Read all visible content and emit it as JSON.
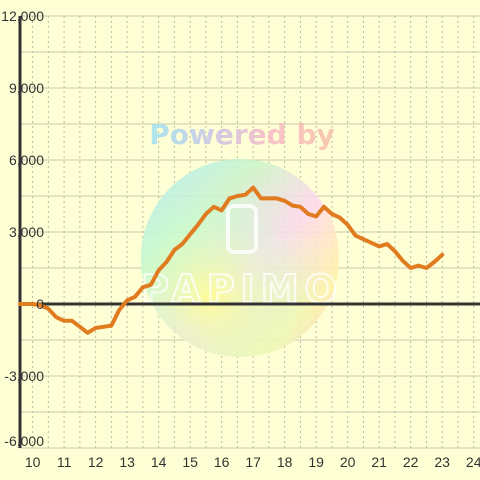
{
  "chart_data": {
    "type": "line",
    "title": "",
    "xlabel": "",
    "ylabel": "",
    "xlim": [
      9.6,
      24.2
    ],
    "ylim": [
      -6000,
      12000
    ],
    "x_ticks": [
      10,
      11,
      12,
      13,
      14,
      15,
      16,
      17,
      18,
      19,
      20,
      21,
      22,
      23,
      24
    ],
    "x_tick_labels": [
      "10",
      "11",
      "12",
      "13",
      "14",
      "15",
      "16",
      "17",
      "18",
      "19",
      "20",
      "21",
      "22",
      "23",
      "24"
    ],
    "y_ticks": [
      -6000,
      -3000,
      0,
      3000,
      6000,
      9000,
      12000
    ],
    "y_tick_labels": [
      "-6,000",
      "-3,000",
      "0",
      "3,000",
      "6,000",
      "9,000",
      "12,000"
    ],
    "grid": true,
    "legend": "none",
    "series": [
      {
        "color": "#e07b20",
        "x": [
          9.6,
          10.0,
          10.25,
          10.5,
          10.75,
          11.0,
          11.25,
          11.5,
          11.75,
          12.0,
          12.25,
          12.5,
          12.75,
          13.0,
          13.25,
          13.5,
          13.75,
          14.0,
          14.25,
          14.5,
          14.75,
          15.0,
          15.25,
          15.5,
          15.75,
          16.0,
          16.25,
          16.5,
          16.75,
          17.0,
          17.25,
          17.5,
          17.75,
          18.0,
          18.25,
          18.5,
          18.75,
          19.0,
          19.25,
          19.5,
          19.75,
          20.0,
          20.25,
          20.5,
          20.75,
          21.0,
          21.25,
          21.5,
          21.75,
          22.0,
          22.25,
          22.5,
          22.75,
          23.0
        ],
        "y": [
          0,
          0,
          -50,
          -200,
          -550,
          -700,
          -700,
          -950,
          -1200,
          -1000,
          -950,
          -900,
          -250,
          150,
          300,
          700,
          800,
          1400,
          1750,
          2250,
          2500,
          2900,
          3300,
          3750,
          4050,
          3900,
          4400,
          4500,
          4550,
          4850,
          4400,
          4400,
          4400,
          4300,
          4100,
          4050,
          3750,
          3650,
          4050,
          3750,
          3600,
          3300,
          2850,
          2700,
          2550,
          2400,
          2500,
          2200,
          1800,
          1500,
          1600,
          1500,
          1750,
          2050
        ]
      }
    ]
  },
  "watermark": {
    "line1": "Powered by",
    "line2": "PAPIMO"
  }
}
